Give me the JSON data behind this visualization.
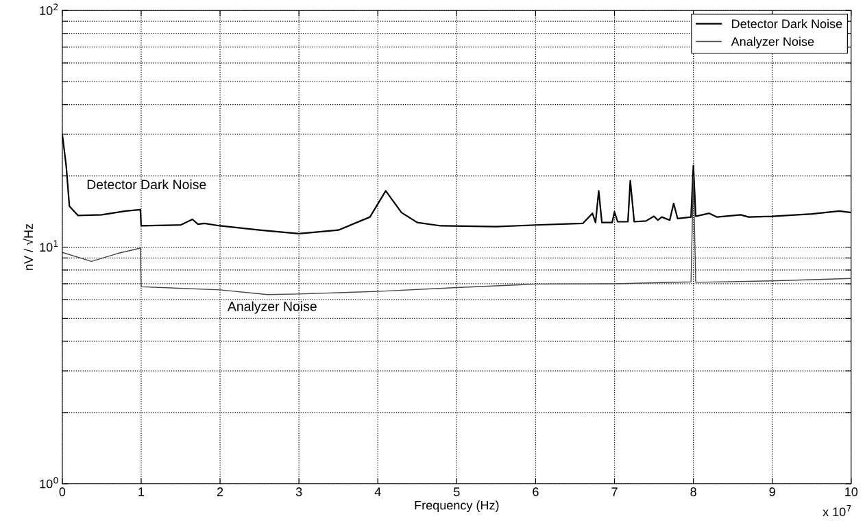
{
  "chart_data": {
    "type": "line",
    "xlabel": "Frequency (Hz)",
    "ylabel": "nV / √Hz",
    "log": "y",
    "grid": true,
    "legend": "top right",
    "marker": "none",
    "xlim": [
      0,
      10
    ],
    "xticks": [
      0,
      1,
      2,
      3,
      4,
      5,
      6,
      7,
      8,
      9,
      10
    ],
    "ylim": [
      1,
      100
    ],
    "yticks": [
      {
        "value": 1,
        "label": "10$^{0}$"
      },
      {
        "value": 2,
        "label": null
      },
      {
        "value": 3,
        "label": null
      },
      {
        "value": 4,
        "label": null
      },
      {
        "value": 5,
        "label": null
      },
      {
        "value": 6,
        "label": null
      },
      {
        "value": 7,
        "label": null
      },
      {
        "value": 8,
        "label": null
      },
      {
        "value": 9,
        "label": null
      },
      {
        "value": 10,
        "label": "10$^{1}$"
      },
      {
        "value": 20,
        "label": null
      },
      {
        "value": 30,
        "label": null
      },
      {
        "value": 40,
        "label": null
      },
      {
        "value": 50,
        "label": null
      },
      {
        "value": 60,
        "label": null
      },
      {
        "value": 70,
        "label": null
      },
      {
        "value": 80,
        "label": null
      },
      {
        "value": 90,
        "label": null
      },
      {
        "value": 100,
        "label": "10$^{2}$"
      }
    ],
    "annotations": [
      "Detector Dark Noise",
      "Analyzer Noise",
      "x 10$^{7}$"
    ],
    "series": [
      {
        "name": "Detector Dark Noise",
        "color": "#000000",
        "x": [
          0,
          0.05,
          0.09,
          0.2,
          0.5,
          0.8,
          0.99,
          1,
          1.5,
          1.65,
          1.72,
          1.8,
          2,
          2.5,
          3,
          3.5,
          3.9,
          4.1,
          4.3,
          4.5,
          4.8,
          5.5,
          6,
          6.6,
          6.72,
          6.76,
          6.8,
          6.84,
          6.97,
          7,
          7.04,
          7.17,
          7.2,
          7.25,
          7.4,
          7.5,
          7.55,
          7.6,
          7.7,
          7.75,
          7.8,
          7.97,
          8,
          8.03,
          8.2,
          8.3,
          8.6,
          8.7,
          9,
          9.5,
          9.85,
          10
        ],
        "values": [
          30,
          22,
          14.9,
          13.6,
          13.7,
          14.2,
          14.4,
          12.3,
          12.4,
          13.1,
          12.5,
          12.6,
          12.3,
          11.8,
          11.4,
          11.8,
          13.4,
          17.3,
          14.0,
          12.7,
          12.3,
          12.2,
          12.4,
          12.6,
          13.9,
          12.7,
          17.3,
          12.7,
          12.7,
          14.1,
          12.8,
          12.8,
          19.1,
          12.8,
          12.9,
          13.5,
          13.0,
          13.4,
          13.0,
          15.3,
          13.2,
          13.4,
          22.1,
          13.5,
          13.9,
          13.4,
          13.7,
          13.4,
          13.5,
          13.8,
          14.2,
          14.0
        ]
      },
      {
        "name": "Analyzer Noise",
        "color": "#444444",
        "x": [
          0,
          0.37,
          0.7,
          0.99,
          1,
          2,
          2.6,
          3,
          4,
          5,
          6,
          7,
          7.97,
          8,
          8.03,
          9,
          10
        ],
        "values": [
          9.5,
          8.7,
          9.4,
          9.9,
          6.8,
          6.6,
          6.3,
          6.34,
          6.5,
          6.75,
          6.98,
          7.0,
          7.13,
          20,
          7.1,
          7.2,
          7.37
        ]
      }
    ]
  }
}
